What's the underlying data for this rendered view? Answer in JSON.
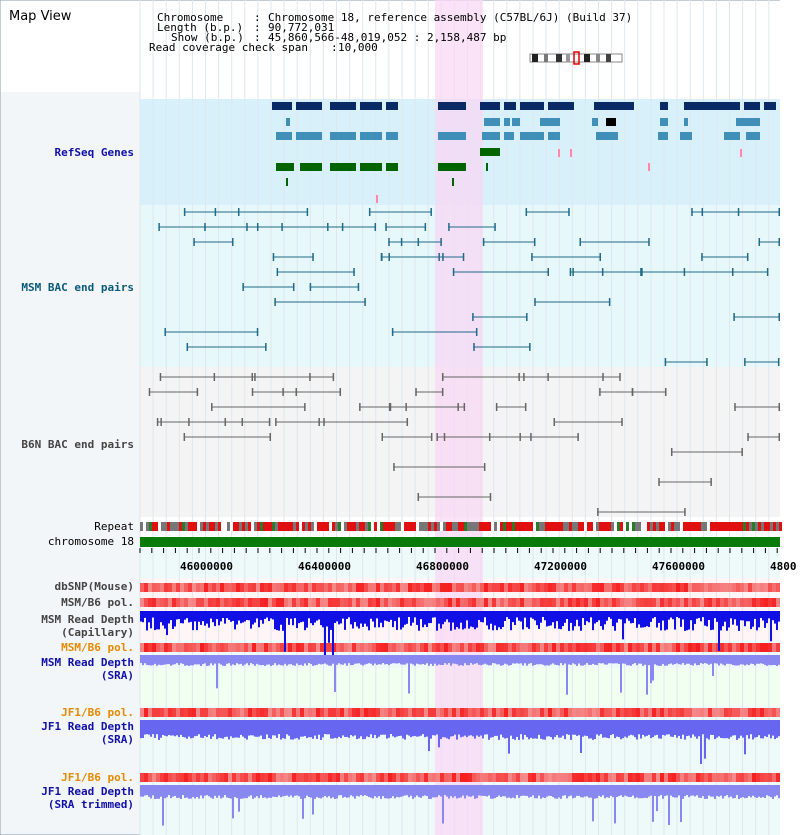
{
  "view": {
    "title": "Map View"
  },
  "header": {
    "chromosome_label": "Chromosome",
    "chromosome_value": "Chromosome 18, reference assembly (C57BL/6J) (Build 37)",
    "length_label": "Length (b.p.)",
    "length_value": "90,772,031",
    "show_label": "Show (b.p.)",
    "show_value": "45,860,566-48,019,052 : 2,158,487 bp",
    "coverage_label": "Read coverage check span",
    "coverage_value": "10,000"
  },
  "tracks": {
    "refseq": "RefSeq Genes",
    "msm_bac": "MSM BAC end pairs",
    "b6n_bac": "B6N BAC end pairs",
    "repeat": "Repeat",
    "chromosome": "chromosome 18",
    "dbsnp": "dbSNP(Mouse)",
    "msm_b6_pol": "MSM/B6 pol.",
    "msm_depth_cap_1": "MSM Read Depth",
    "msm_depth_cap_2": "(Capillary)",
    "msm_b6_pol_2": "MSM/B6 pol.",
    "msm_depth_sra_1": "MSM Read Depth",
    "msm_depth_sra_2": "(SRA)",
    "jf1_b6_pol": "JF1/B6 pol.",
    "jf1_depth_sra_1": "JF1 Read Depth",
    "jf1_depth_sra_2": "(SRA)",
    "jf1_b6_pol_2": "JF1/B6 pol.",
    "jf1_depth_trim_1": "JF1 Read Depth",
    "jf1_depth_trim_2": "(SRA trimmed)"
  },
  "axis": {
    "ticks": [
      "46000000",
      "46400000",
      "46800000",
      "47200000",
      "47600000",
      "4800"
    ],
    "start_bp": 45860566,
    "end_bp": 48019052
  },
  "colors": {
    "refseq_bg": "#d8f0fa",
    "msm_bg": "#e6f8fa",
    "b6n_bg": "#f4f4f4",
    "highlight": "#f8d8f4",
    "gene_dark": "#0a2a66",
    "gene_mid": "#3f8fb8",
    "gene_green": "#006400",
    "msm_pair": "#206a8a",
    "b6n_pair": "#666666",
    "chrom_bar": "#0a7a0a"
  }
}
